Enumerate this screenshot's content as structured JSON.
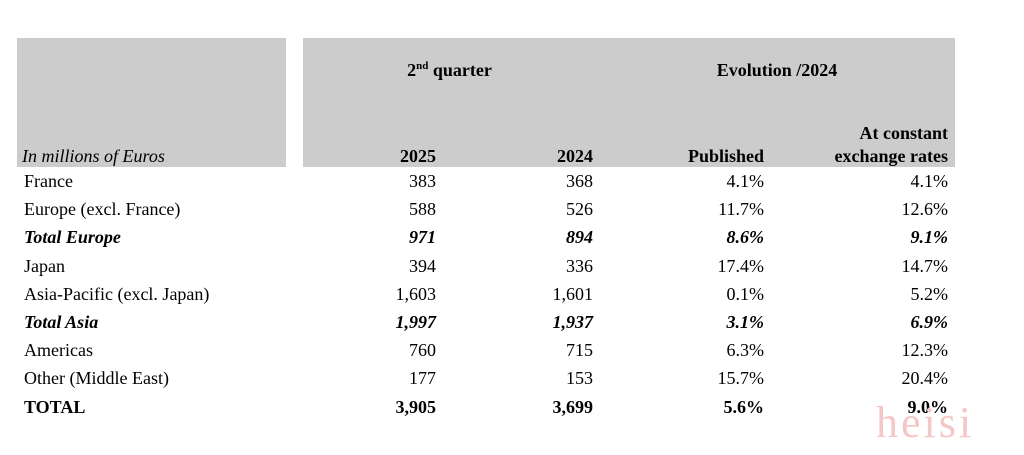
{
  "table": {
    "units_label": "In millions of Euros",
    "group_quarter": {
      "prefix": "2",
      "sup": "nd",
      "suffix": " quarter"
    },
    "group_evolution": "Evolution /2024",
    "columns": {
      "y2025": "2025",
      "y2024": "2024",
      "published": "Published",
      "constant_line1": "At constant",
      "constant_line2": "exchange rates"
    },
    "rows": [
      {
        "label": "France",
        "v2025": "383",
        "v2024": "368",
        "published": "4.1%",
        "constant": "4.1%",
        "style": "normal"
      },
      {
        "label": "Europe (excl. France)",
        "v2025": "588",
        "v2024": "526",
        "published": "11.7%",
        "constant": "12.6%",
        "style": "normal"
      },
      {
        "label": "Total Europe",
        "v2025": "971",
        "v2024": "894",
        "published": "8.6%",
        "constant": "9.1%",
        "style": "subtotal"
      },
      {
        "label": "Japan",
        "v2025": "394",
        "v2024": "336",
        "published": "17.4%",
        "constant": "14.7%",
        "style": "normal"
      },
      {
        "label": "Asia-Pacific (excl. Japan)",
        "v2025": "1,603",
        "v2024": "1,601",
        "published": "0.1%",
        "constant": "5.2%",
        "style": "normal"
      },
      {
        "label": "Total Asia",
        "v2025": "1,997",
        "v2024": "1,937",
        "published": "3.1%",
        "constant": "6.9%",
        "style": "subtotal"
      },
      {
        "label": "Americas",
        "v2025": "760",
        "v2024": "715",
        "published": "6.3%",
        "constant": "12.3%",
        "style": "normal"
      },
      {
        "label": "Other (Middle East)",
        "v2025": "177",
        "v2024": "153",
        "published": "15.7%",
        "constant": "20.4%",
        "style": "normal"
      },
      {
        "label": "TOTAL",
        "v2025": "3,905",
        "v2024": "3,699",
        "published": "5.6%",
        "constant": "9.0%",
        "style": "total"
      }
    ]
  },
  "watermark": "heisi"
}
